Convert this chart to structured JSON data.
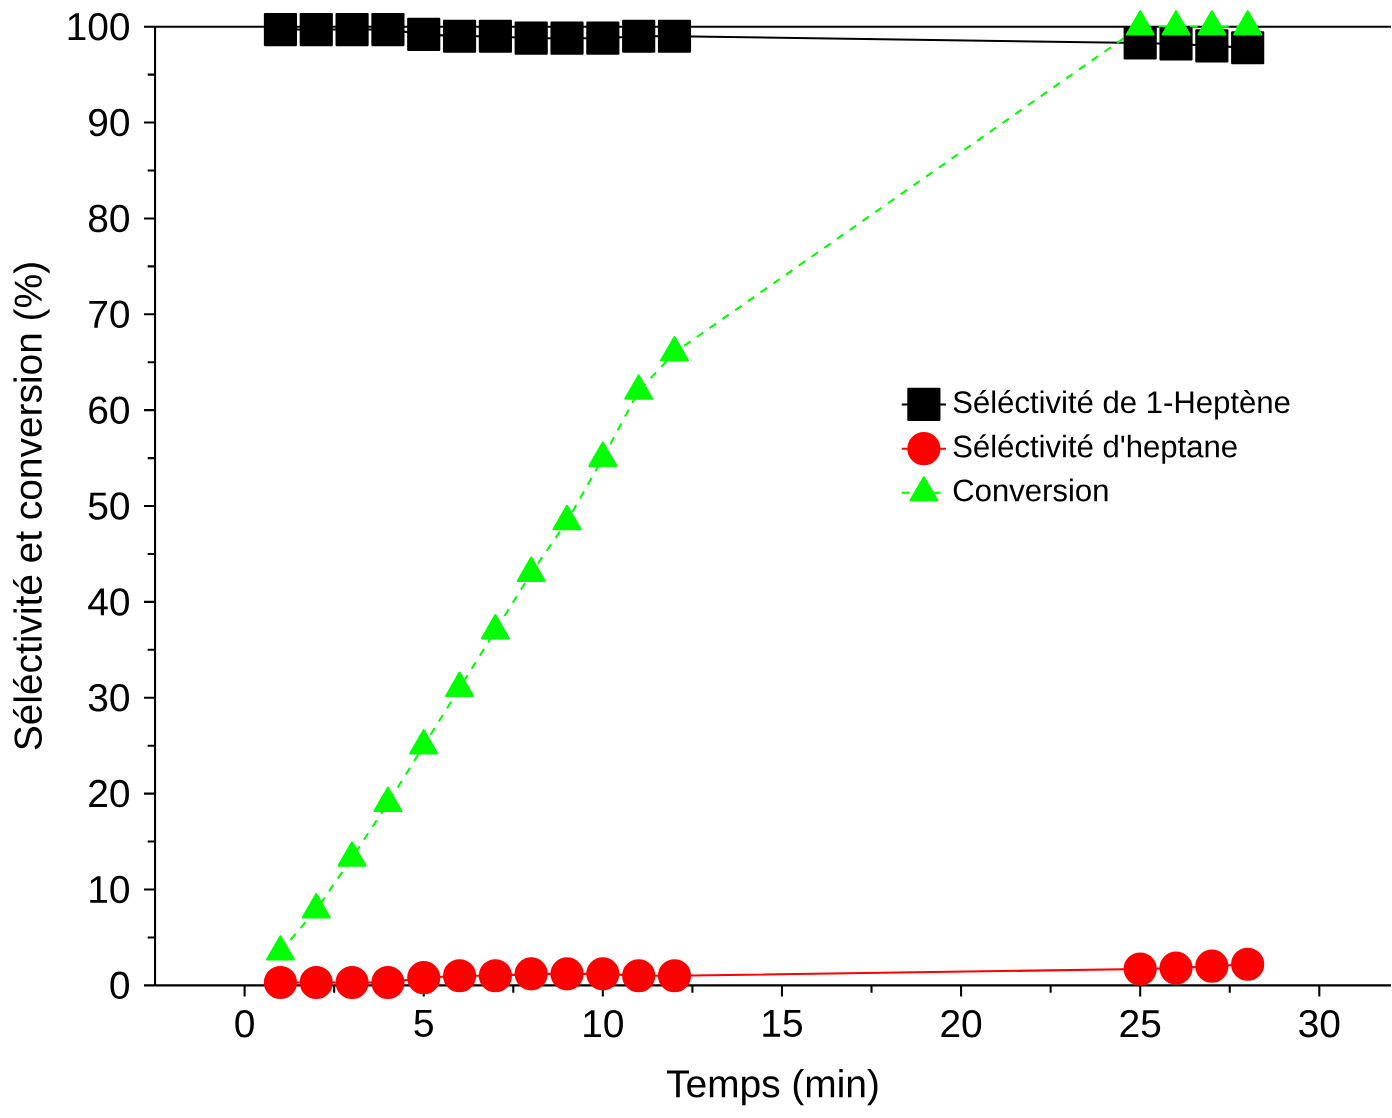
{
  "chart_data": {
    "type": "line",
    "xlabel": "Temps (min)",
    "ylabel": "Séléctivité et conversion (%)",
    "xlim": [
      -2.5,
      32
    ],
    "xticks": [
      0,
      5,
      10,
      15,
      20,
      25,
      30
    ],
    "ylim": [
      0,
      100
    ],
    "yticks": [
      0,
      10,
      20,
      30,
      40,
      50,
      60,
      70,
      80,
      90,
      100
    ],
    "legend": "right",
    "x": [
      1,
      2,
      3,
      4,
      5,
      6,
      7,
      8,
      9,
      10,
      11,
      12,
      25,
      26,
      27,
      28
    ],
    "series": [
      {
        "name": "Séléctivité de 1-Heptène",
        "color": "#000000",
        "marker": "square",
        "line_style": "solid",
        "values": [
          99.7,
          99.7,
          99.7,
          99.7,
          99.2,
          99,
          99,
          98.8,
          98.8,
          98.8,
          99,
          99,
          98.3,
          98.2,
          98,
          97.8
        ]
      },
      {
        "name": "Séléctivité d'heptane",
        "color": "#ff0000",
        "marker": "circle",
        "line_style": "solid",
        "values": [
          0.3,
          0.3,
          0.3,
          0.3,
          0.8,
          1,
          1,
          1.2,
          1.2,
          1.2,
          1,
          1,
          1.7,
          1.8,
          2,
          2.2
        ]
      },
      {
        "name": "Conversion",
        "color": "#00ff00",
        "marker": "triangle",
        "line_style": "dashed",
        "values": [
          3.5,
          7.9,
          13.3,
          19,
          25,
          31,
          37,
          43,
          48.4,
          55,
          62,
          66,
          100,
          100,
          100,
          100
        ]
      }
    ]
  }
}
